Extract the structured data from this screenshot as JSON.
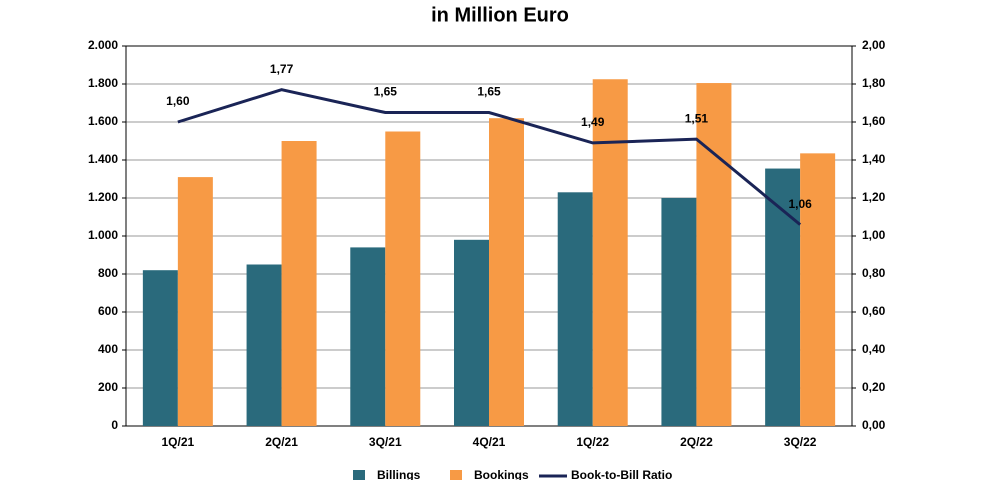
{
  "chart_data": {
    "type": "bar_line",
    "title": "in Million Euro",
    "categories": [
      "1Q/21",
      "2Q/21",
      "3Q/21",
      "4Q/21",
      "1Q/22",
      "2Q/22",
      "3Q/22"
    ],
    "series": [
      {
        "name": "Billings",
        "color": "#2a6a7c",
        "type": "bar",
        "values": [
          820,
          850,
          940,
          980,
          1230,
          1200,
          1355
        ]
      },
      {
        "name": "Bookings",
        "color": "#f79a45",
        "type": "bar",
        "values": [
          1310,
          1500,
          1550,
          1620,
          1825,
          1805,
          1435
        ]
      },
      {
        "name": "Book-to-Bill Ratio",
        "color": "#1a2456",
        "type": "line",
        "axis": "y2",
        "values": [
          1.6,
          1.77,
          1.65,
          1.65,
          1.49,
          1.51,
          1.06
        ],
        "value_labels": [
          "1,60",
          "1,77",
          "1,65",
          "1,65",
          "1,49",
          "1,51",
          "1,06"
        ]
      }
    ],
    "ylim": [
      0,
      2000
    ],
    "yticks": [
      0,
      200,
      400,
      600,
      800,
      {
        "value": 1000,
        "label": "1.000"
      },
      {
        "value": 1200,
        "label": "1.200"
      },
      {
        "value": 1400,
        "label": "1.400"
      },
      {
        "value": 1600,
        "label": "1.600"
      },
      {
        "value": 1800,
        "label": "1.800"
      },
      {
        "value": 2000,
        "label": "2.000"
      }
    ],
    "y2lim": [
      0,
      2
    ],
    "y2ticks": [
      {
        "value": 0,
        "label": "0,00"
      },
      {
        "value": 0.2,
        "label": "0,20"
      },
      {
        "value": 0.4,
        "label": "0,40"
      },
      {
        "value": 0.6,
        "label": "0,60"
      },
      {
        "value": 0.8,
        "label": "0,80"
      },
      {
        "value": 1,
        "label": "1,00"
      },
      {
        "value": 1.2,
        "label": "1,20"
      },
      {
        "value": 1.4,
        "label": "1,40"
      },
      {
        "value": 1.6,
        "label": "1,60"
      },
      {
        "value": 1.8,
        "label": "1,80"
      },
      {
        "value": 2,
        "label": "2,00"
      }
    ],
    "grid": true
  }
}
